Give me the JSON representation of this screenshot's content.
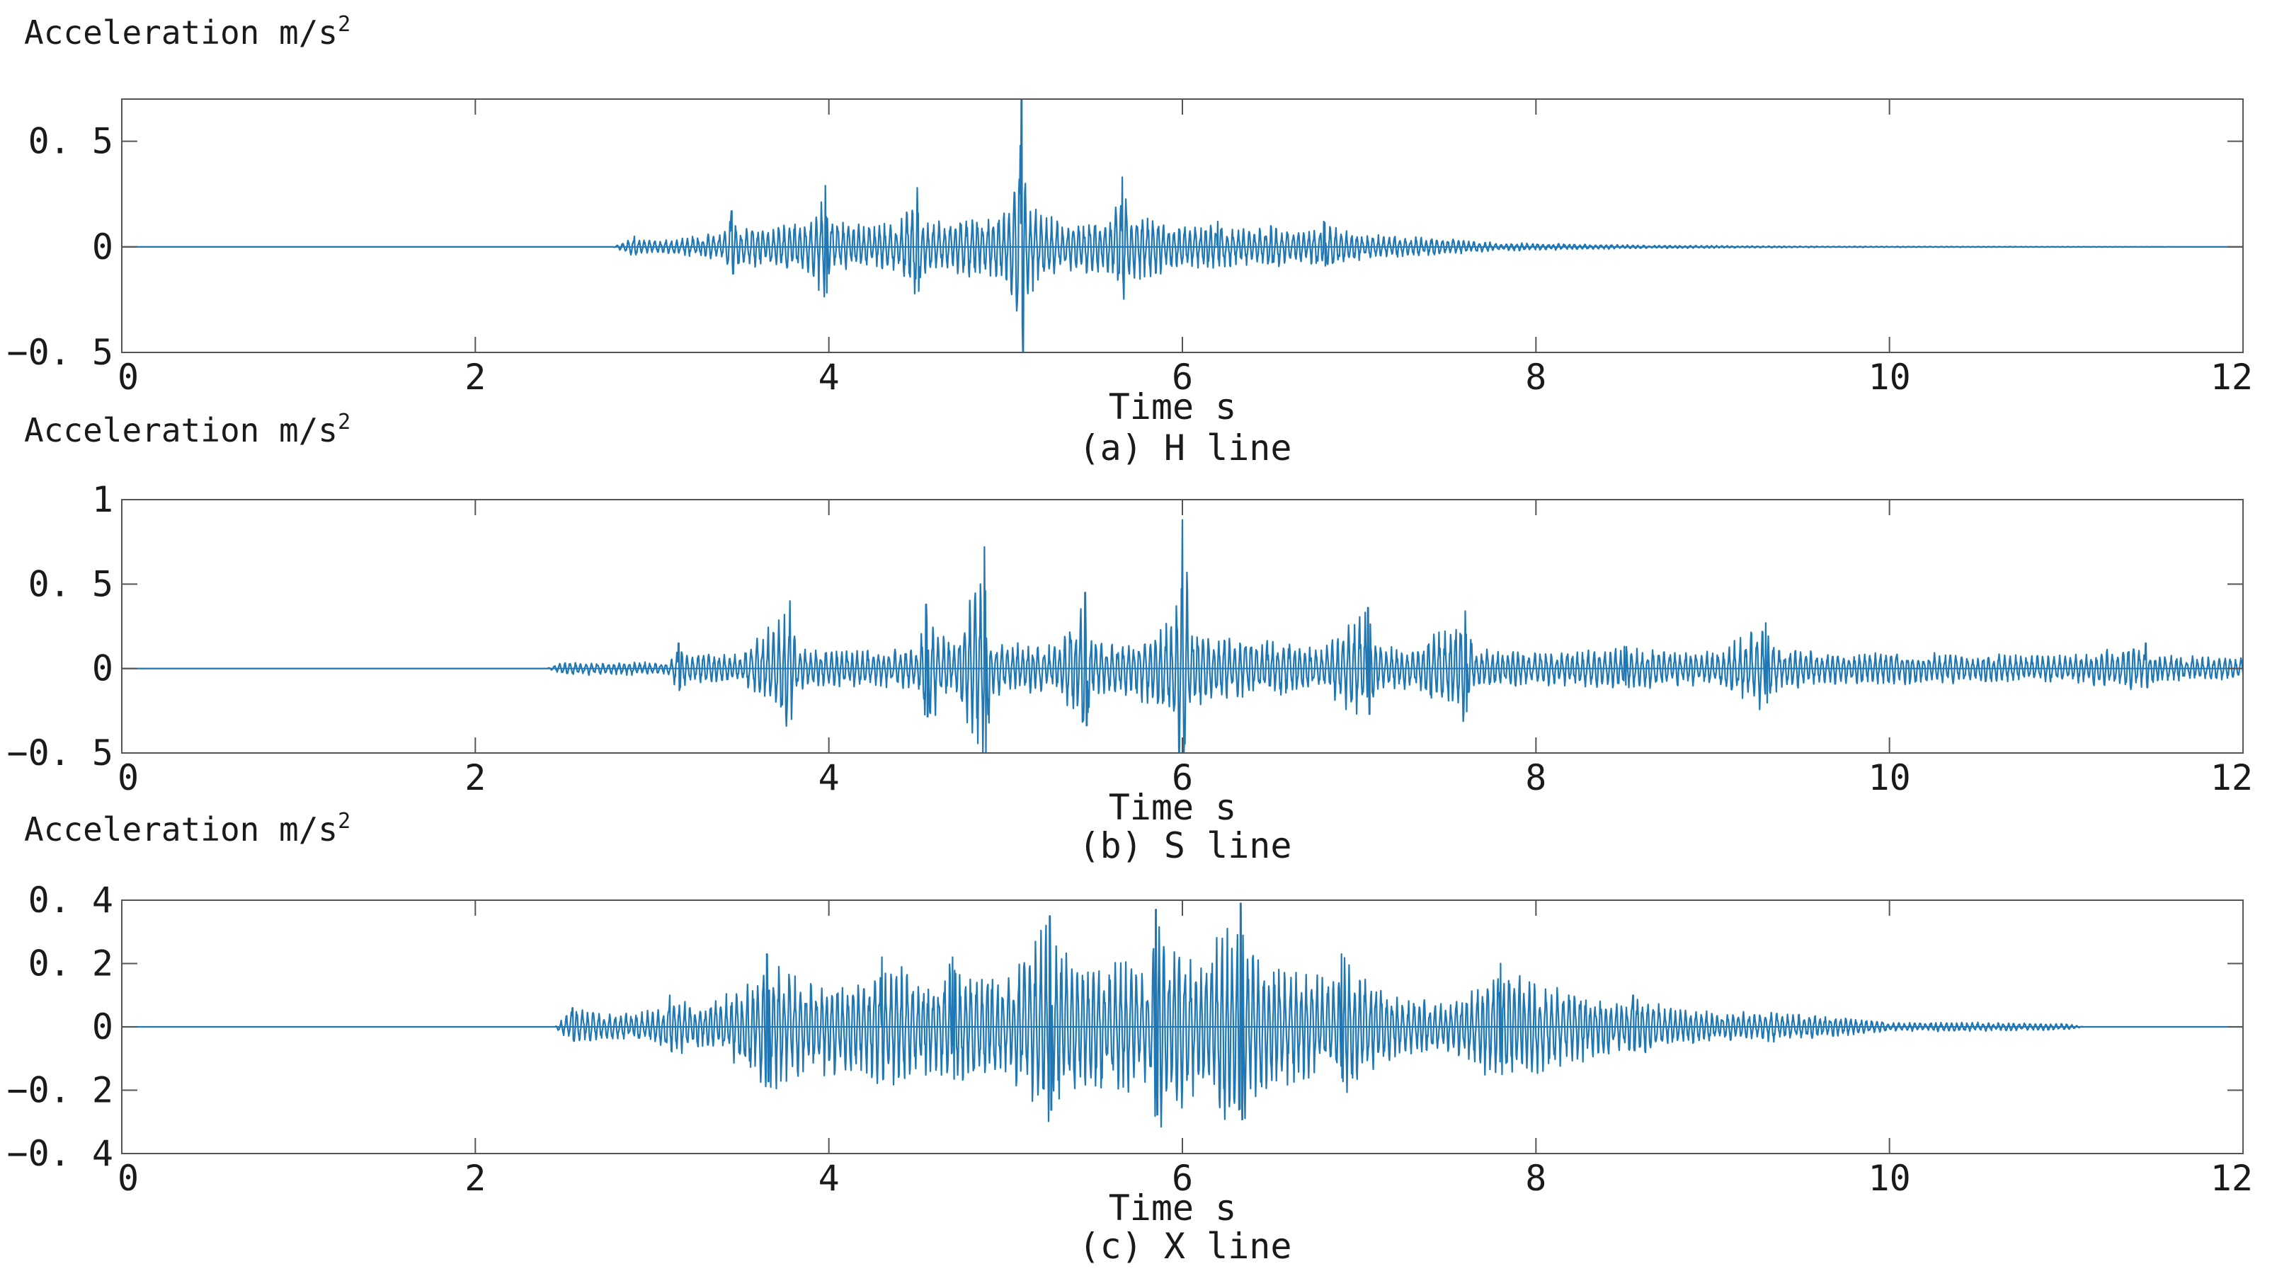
{
  "colors": {
    "series": "#1f77b4",
    "axes": "#555555",
    "background": "#ffffff"
  },
  "chart_data": [
    {
      "type": "line",
      "caption": "(a)  H  line",
      "ylabel": "Acceleration m/s",
      "ylabel_sup": "2",
      "xlabel": "Time  s",
      "xlim": [
        0,
        12
      ],
      "ylim": [
        -0.5,
        0.7
      ],
      "xticks": [
        0,
        2,
        4,
        6,
        8,
        10,
        12
      ],
      "xtick_labels": [
        "0",
        "2",
        "4",
        "6",
        "8",
        "10",
        "12"
      ],
      "yticks": [
        -0.5,
        0,
        0.5
      ],
      "ytick_labels": [
        "−0. 5",
        "0",
        "0. 5"
      ],
      "grid": false,
      "series": [
        {
          "x": [
            0,
            2.78,
            2.85,
            2.9,
            3.0,
            3.2,
            3.4,
            3.45,
            3.5,
            3.6,
            3.75,
            3.9,
            3.98,
            4.02,
            4.1,
            4.25,
            4.4,
            4.5,
            4.52,
            4.6,
            4.75,
            4.9,
            5.0,
            5.05,
            5.09,
            5.12,
            5.2,
            5.3,
            5.45,
            5.6,
            5.66,
            5.7,
            5.8,
            5.95,
            6.1,
            6.2,
            6.3,
            6.5,
            6.7,
            6.8,
            6.9,
            7.0,
            7.2,
            7.4,
            7.6,
            7.8,
            8.2,
            8.6,
            9.0,
            9.5,
            12
          ],
          "envelope": [
            0,
            0,
            0.03,
            0.05,
            0.03,
            0.05,
            0.07,
            0.17,
            0.1,
            0.1,
            0.11,
            0.13,
            0.29,
            0.14,
            0.12,
            0.12,
            0.13,
            0.28,
            0.15,
            0.12,
            0.14,
            0.15,
            0.17,
            0.3,
            0.7,
            0.26,
            0.18,
            0.12,
            0.13,
            0.14,
            0.33,
            0.16,
            0.16,
            0.11,
            0.1,
            0.12,
            0.09,
            0.1,
            0.07,
            0.12,
            0.1,
            0.07,
            0.05,
            0.05,
            0.03,
            0.02,
            0.015,
            0.008,
            0.006,
            0.003,
            0
          ]
        }
      ]
    },
    {
      "type": "line",
      "caption": "(b)  S  line",
      "ylabel": "Acceleration m/s",
      "ylabel_sup": "2",
      "xlabel": "Time  s",
      "xlim": [
        0,
        12
      ],
      "ylim": [
        -0.5,
        1.0
      ],
      "xticks": [
        0,
        2,
        4,
        6,
        8,
        10,
        12
      ],
      "xtick_labels": [
        "0",
        "2",
        "4",
        "6",
        "8",
        "10",
        "12"
      ],
      "yticks": [
        -0.5,
        0,
        0.5,
        1
      ],
      "ytick_labels": [
        "−0. 5",
        "0",
        "0. 5",
        "1"
      ],
      "grid": false,
      "series": [
        {
          "x": [
            0,
            2.4,
            2.5,
            3.1,
            3.15,
            3.2,
            3.5,
            3.78,
            3.82,
            3.9,
            4.2,
            4.5,
            4.55,
            4.7,
            4.88,
            4.92,
            5.0,
            5.3,
            5.45,
            5.5,
            5.7,
            5.95,
            6.0,
            6.05,
            6.2,
            6.5,
            6.8,
            7.05,
            7.1,
            7.3,
            7.6,
            7.65,
            8.0,
            8.5,
            9.0,
            9.3,
            9.35,
            9.6,
            10.0,
            10.5,
            11.0,
            11.45,
            11.5,
            12
          ],
          "envelope": [
            0,
            0,
            0.04,
            0.04,
            0.15,
            0.09,
            0.09,
            0.4,
            0.13,
            0.12,
            0.12,
            0.12,
            0.38,
            0.13,
            0.72,
            0.2,
            0.16,
            0.14,
            0.45,
            0.16,
            0.16,
            0.3,
            0.88,
            0.3,
            0.2,
            0.18,
            0.14,
            0.36,
            0.14,
            0.12,
            0.34,
            0.12,
            0.1,
            0.13,
            0.1,
            0.27,
            0.14,
            0.1,
            0.1,
            0.09,
            0.08,
            0.15,
            0.08,
            0.07
          ]
        }
      ]
    },
    {
      "type": "line",
      "caption": "(c)  X  line",
      "ylabel": "Acceleration m/s",
      "ylabel_sup": "2",
      "xlabel": "Time  s",
      "xlim": [
        0,
        12
      ],
      "ylim": [
        -0.4,
        0.4
      ],
      "xticks": [
        0,
        2,
        4,
        6,
        8,
        10,
        12
      ],
      "xtick_labels": [
        "0",
        "2",
        "4",
        "6",
        "8",
        "10",
        "12"
      ],
      "yticks": [
        -0.4,
        -0.2,
        0,
        0.2,
        0.4
      ],
      "ytick_labels": [
        "−0. 4",
        "−0. 2",
        "0",
        "0. 2",
        "0. 4"
      ],
      "grid": false,
      "series": [
        {
          "x": [
            0,
            2.45,
            2.55,
            2.8,
            3.05,
            3.1,
            3.3,
            3.6,
            3.65,
            3.8,
            4.0,
            4.25,
            4.3,
            4.6,
            4.7,
            5.0,
            5.25,
            5.3,
            5.5,
            5.8,
            5.85,
            6.1,
            6.33,
            6.4,
            6.6,
            6.85,
            6.9,
            7.2,
            7.5,
            7.8,
            8.2,
            8.5,
            8.55,
            8.8,
            9.0,
            9.3,
            9.6,
            10.0,
            10.5,
            11.0,
            11.1,
            12
          ],
          "envelope": [
            0,
            0,
            0.06,
            0.04,
            0.06,
            0.1,
            0.07,
            0.16,
            0.23,
            0.18,
            0.16,
            0.16,
            0.22,
            0.14,
            0.22,
            0.16,
            0.35,
            0.24,
            0.22,
            0.2,
            0.37,
            0.22,
            0.39,
            0.24,
            0.2,
            0.15,
            0.23,
            0.1,
            0.08,
            0.2,
            0.12,
            0.08,
            0.1,
            0.06,
            0.05,
            0.05,
            0.04,
            0.015,
            0.015,
            0.01,
            0,
            0
          ]
        }
      ]
    }
  ]
}
